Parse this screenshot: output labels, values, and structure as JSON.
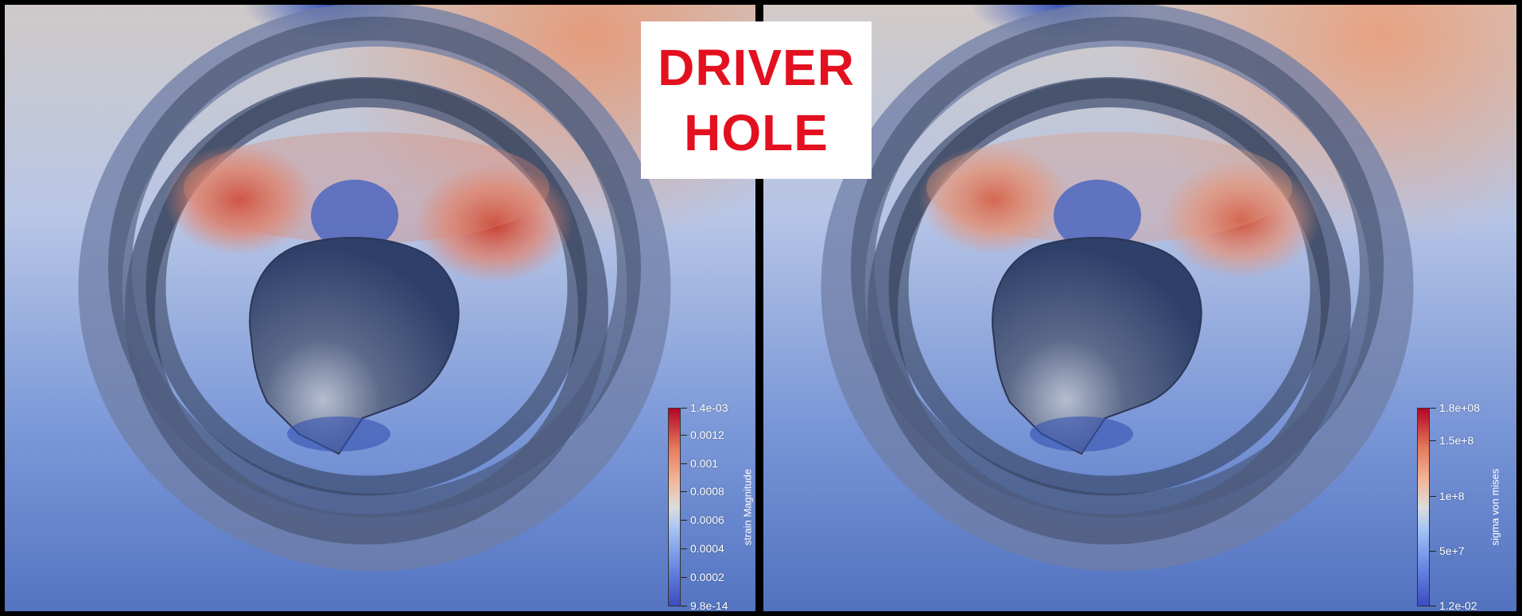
{
  "title": {
    "line1": "DRIVER",
    "line2": "HOLE",
    "color": "#e3101f"
  },
  "panels": [
    {
      "field": "strain Magnitude",
      "legend": {
        "title": "strain Magnitude",
        "ticks": [
          "1.4e-03",
          "0.0012",
          "0.001",
          "0.0008",
          "0.0006",
          "0.0004",
          "0.0002",
          "9.8e-14"
        ]
      }
    },
    {
      "field": "sigma von mises",
      "legend": {
        "title": "sigma von mises",
        "ticks": [
          "1.8e+08",
          "1.5e+8",
          "1e+8",
          "5e+7",
          "1.2e-02"
        ]
      }
    }
  ],
  "colormap": {
    "low": "#3b4cc0",
    "mid": "#dddddd",
    "high": "#b40426"
  }
}
